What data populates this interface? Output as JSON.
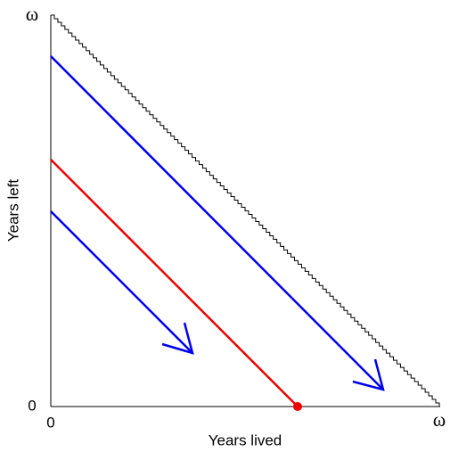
{
  "axes": {
    "y_label": "Years left",
    "x_label": "Years lived",
    "y_ticks": [
      "0",
      "ω"
    ],
    "x_ticks": [
      "0",
      "ω"
    ]
  }
}
